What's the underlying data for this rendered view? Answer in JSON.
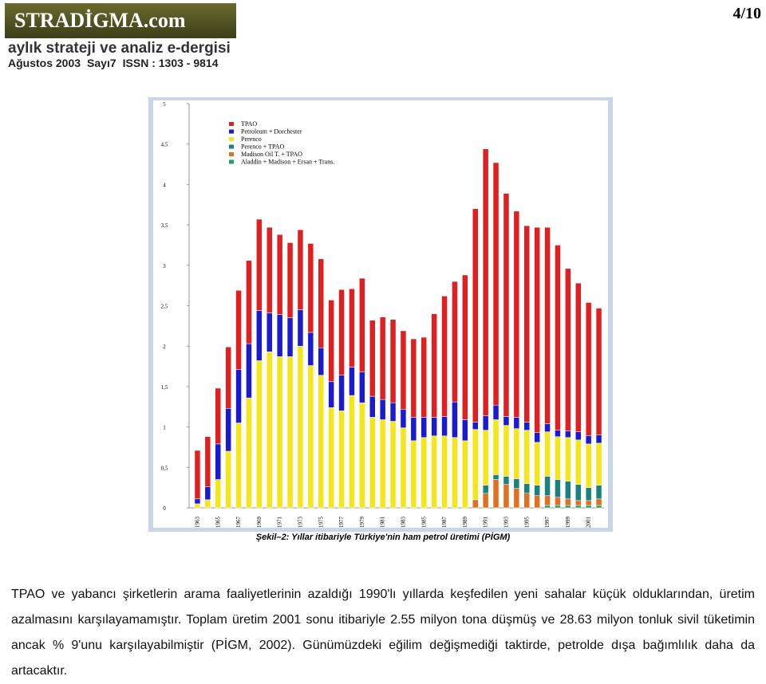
{
  "header": {
    "logo": "STRADİGMA.com",
    "tagline": "aylık strateji ve analiz e-dergisi",
    "issue": "Ağustos 2003",
    "number": "Sayı7",
    "issn": "ISSN : 1303 - 9814",
    "page": "4/10"
  },
  "chart_data": {
    "type": "stacked-bar",
    "categories": [
      "1963",
      null,
      "1965",
      null,
      "1967",
      null,
      "1969",
      null,
      "1971",
      null,
      "1973",
      null,
      "1975",
      null,
      "1977",
      null,
      "1979",
      null,
      "1981",
      null,
      "1983",
      null,
      "1985",
      null,
      "1987",
      null,
      "1989",
      null,
      "1991",
      null,
      "1993",
      null,
      "1995",
      null,
      "1997",
      null,
      "1999",
      null,
      "2001",
      null
    ],
    "series": [
      {
        "name": "TPAO",
        "color": "#e02020",
        "values": [
          0.6,
          0.62,
          0.69,
          0.76,
          0.98,
          1.03,
          1.13,
          1.06,
          0.99,
          0.93,
          0.99,
          1.1,
          1.1,
          1.01,
          1.06,
          0.97,
          1.16,
          0.94,
          1.02,
          1.03,
          0.97,
          0.97,
          0.99,
          1.28,
          1.49,
          1.49,
          1.79,
          2.64,
          3.3,
          3.0,
          2.76,
          2.55,
          2.43,
          2.54,
          2.43,
          2.29,
          2.01,
          1.84,
          1.65,
          1.57
        ]
      },
      {
        "name": "Petroleum + Dorchester",
        "color": "#1a1ad0",
        "values": [
          0.06,
          0.16,
          0.44,
          0.53,
          0.66,
          0.67,
          0.62,
          0.48,
          0.52,
          0.48,
          0.45,
          0.41,
          0.34,
          0.32,
          0.44,
          0.35,
          0.38,
          0.26,
          0.25,
          0.23,
          0.23,
          0.29,
          0.25,
          0.23,
          0.24,
          0.44,
          0.26,
          0.09,
          0.18,
          0.18,
          0.11,
          0.14,
          0.1,
          0.12,
          0.1,
          0.08,
          0.08,
          0.1,
          0.1,
          0.1
        ]
      },
      {
        "name": "Perenco",
        "color": "#f5e61a",
        "values": [
          0.05,
          0.1,
          0.35,
          0.7,
          1.05,
          1.36,
          1.82,
          1.93,
          1.87,
          1.87,
          2.0,
          1.76,
          1.64,
          1.24,
          1.2,
          1.39,
          1.3,
          1.12,
          1.09,
          1.07,
          0.99,
          0.83,
          0.87,
          0.89,
          0.89,
          0.87,
          0.83,
          0.87,
          0.68,
          0.68,
          0.63,
          0.62,
          0.66,
          0.53,
          0.55,
          0.53,
          0.54,
          0.55,
          0.54,
          0.52
        ]
      },
      {
        "name": "Perenco + TPAO",
        "color": "#1a8080",
        "values": [
          0,
          0,
          0,
          0,
          0,
          0,
          0,
          0,
          0,
          0,
          0,
          0,
          0,
          0,
          0,
          0,
          0,
          0,
          0,
          0,
          0,
          0,
          0,
          0,
          0,
          0,
          0,
          0,
          0.1,
          0.06,
          0.1,
          0.12,
          0.12,
          0.13,
          0.24,
          0.22,
          0.22,
          0.2,
          0.16,
          0.17
        ]
      },
      {
        "name": "Madison Oil T. + TPAO",
        "color": "#e07020",
        "values": [
          0,
          0,
          0,
          0,
          0,
          0,
          0,
          0,
          0,
          0,
          0,
          0,
          0,
          0,
          0,
          0,
          0,
          0,
          0,
          0,
          0,
          0,
          0,
          0,
          0,
          0,
          0,
          0.1,
          0.18,
          0.35,
          0.29,
          0.24,
          0.18,
          0.15,
          0.12,
          0.1,
          0.08,
          0.06,
          0.06,
          0.08
        ]
      },
      {
        "name": "Aladdin + Madison + Ersan + Trans.",
        "color": "#20a060",
        "values": [
          0,
          0,
          0,
          0,
          0,
          0,
          0,
          0,
          0,
          0,
          0,
          0,
          0,
          0,
          0,
          0,
          0,
          0,
          0,
          0,
          0,
          0,
          0,
          0,
          0,
          0,
          0,
          0,
          0,
          0,
          0,
          0,
          0,
          0,
          0.03,
          0.03,
          0.03,
          0.03,
          0.03,
          0.03
        ]
      }
    ],
    "ylim": [
      0,
      5
    ],
    "yticks": [
      0,
      {
        "value": 0.5,
        "label": "0,5"
      },
      1,
      {
        "value": 1.5,
        "label": "1,5"
      },
      2,
      {
        "value": 2.5,
        "label": "2,5"
      },
      3,
      {
        "value": 3.5,
        "label": "3,5"
      },
      4,
      {
        "value": 4.5,
        "label": "4,5"
      },
      5
    ],
    "legend": "top-left"
  },
  "caption": "Şekil–2: Yıllar itibariyle Türkiye'nin ham petrol üretimi (PİGM)",
  "body": "TPAO ve yabancı şirketlerin arama faaliyetlerinin azaldığı 1990'lı yıllarda keşfedilen yeni sahalar küçük olduklarından, üretim azalmasını karşılayamamıştır. Toplam üretim 2001 sonu itibariyle 2.55 milyon tona düşmüş ve 28.63 milyon tonluk sivil tüketimin ancak % 9'unu karşılayabilmiştir (PİGM, 2002). Günümüzdeki eğilim değişmediği taktirde, petrolde dışa bağımlılık daha da artacaktır."
}
